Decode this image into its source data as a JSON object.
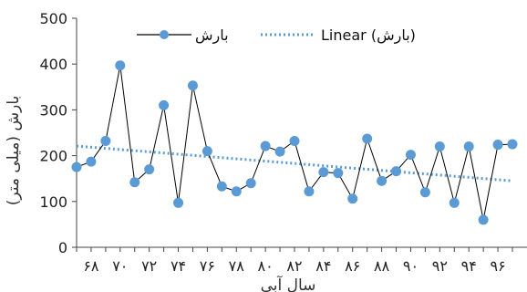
{
  "chart_data": {
    "type": "line",
    "title": "",
    "xlabel": "سال آبی",
    "ylabel": "بارش (میلی متر)",
    "ylim": [
      0,
      500
    ],
    "yticks": [
      0,
      100,
      200,
      300,
      400,
      500
    ],
    "grid": false,
    "legend_position": "top",
    "x_range": [
      67,
      97
    ],
    "x_tick_labels": [
      "۶۸",
      "۷۰",
      "۷۲",
      "۷۴",
      "۷۶",
      "۷۸",
      "۸۰",
      "۸۲",
      "۸۴",
      "۸۶",
      "۸۸",
      "۹۰",
      "۹۲",
      "۹۴",
      "۹۶"
    ],
    "x_tick_values": [
      68,
      70,
      72,
      74,
      76,
      78,
      80,
      82,
      84,
      86,
      88,
      90,
      92,
      94,
      96
    ],
    "series": [
      {
        "name": "بارش",
        "color": "#5B9BD5",
        "line_color": "#000000",
        "x": [
          67,
          68,
          69,
          70,
          71,
          72,
          73,
          74,
          75,
          76,
          77,
          78,
          79,
          80,
          81,
          82,
          83,
          84,
          85,
          86,
          87,
          88,
          89,
          90,
          91,
          92,
          93,
          94,
          95,
          96,
          97
        ],
        "values": [
          175,
          187,
          232,
          397,
          142,
          170,
          310,
          97,
          353,
          210,
          133,
          122,
          140,
          221,
          209,
          232,
          122,
          164,
          162,
          106,
          237,
          145,
          166,
          202,
          120,
          220,
          97,
          220,
          60,
          224,
          225
        ]
      },
      {
        "name": "Linear (بارش)",
        "type": "trendline",
        "color": "#5B9BD5",
        "style": "dotted",
        "x": [
          67,
          97
        ],
        "values": [
          221,
          145
        ]
      }
    ]
  }
}
